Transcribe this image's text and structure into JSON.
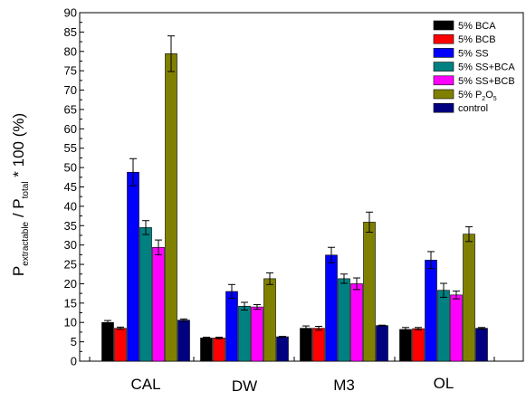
{
  "chart_data": {
    "type": "bar",
    "categories": [
      "CAL",
      "DW",
      "M3",
      "OL"
    ],
    "ylim": [
      0,
      90
    ],
    "yticks": [
      0,
      5,
      10,
      15,
      20,
      25,
      30,
      35,
      40,
      45,
      50,
      55,
      60,
      65,
      70,
      75,
      80,
      85,
      90
    ],
    "ylabel": {
      "main": "P",
      "sub1": "extractable",
      "mid": " / P",
      "sub2": "total",
      "tail": " * 100 (%)"
    },
    "legend_position": "top-right",
    "series": [
      {
        "name": "5% BCA",
        "color": "#000000",
        "values": [
          10.0,
          6.0,
          8.5,
          8.2
        ],
        "errors": [
          0.5,
          0.2,
          0.6,
          0.5
        ]
      },
      {
        "name": "5% BCB",
        "color": "#ff0000",
        "values": [
          8.5,
          6.0,
          8.5,
          8.4
        ],
        "errors": [
          0.3,
          0.2,
          0.5,
          0.3
        ]
      },
      {
        "name": "5% SS",
        "color": "#0000ff",
        "values": [
          48.8,
          18.0,
          27.4,
          26.1
        ],
        "errors": [
          3.5,
          1.8,
          2.0,
          2.2
        ]
      },
      {
        "name": "5% SS+BCA",
        "color": "#008080",
        "values": [
          34.5,
          14.2,
          21.3,
          18.3
        ],
        "errors": [
          1.8,
          1.0,
          1.2,
          1.8
        ]
      },
      {
        "name": "5% SS+BCB",
        "color": "#ff00ff",
        "values": [
          29.4,
          14.0,
          20.0,
          17.1
        ],
        "errors": [
          1.9,
          0.6,
          1.5,
          1.0
        ]
      },
      {
        "name_main": "5% P",
        "name_sub1": "2",
        "name_mid": "O",
        "name_sub2": "5",
        "color": "#808000",
        "values": [
          79.4,
          21.3,
          35.9,
          32.8
        ],
        "errors": [
          4.6,
          1.5,
          2.6,
          1.9
        ]
      },
      {
        "name": "control",
        "color": "#000080",
        "values": [
          10.6,
          6.3,
          9.2,
          8.5
        ],
        "errors": [
          0.3,
          0.1,
          0.1,
          0.2
        ]
      }
    ]
  }
}
